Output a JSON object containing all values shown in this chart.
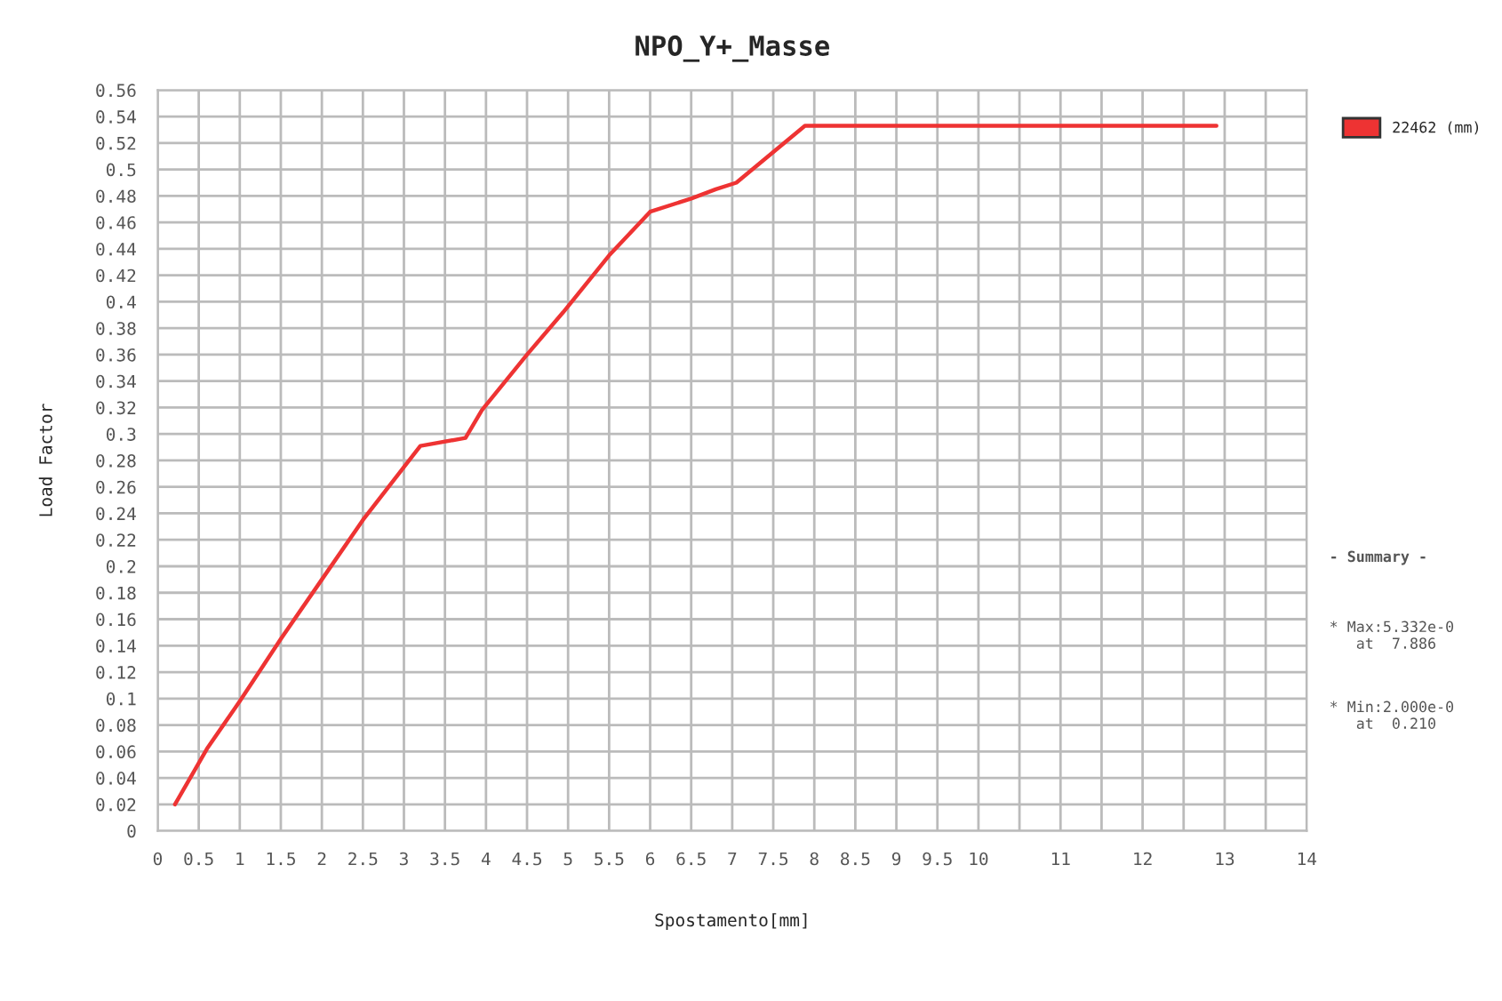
{
  "chart_data": {
    "type": "line",
    "title": "NPO_Y+_Masse",
    "xlabel": "Spostamento[mm]",
    "ylabel": "Load Factor",
    "x": [
      0.21,
      0.6,
      1.0,
      1.5,
      2.0,
      2.5,
      3.2,
      3.75,
      3.95,
      4.5,
      4.94,
      5.5,
      6.0,
      6.5,
      6.8,
      7.05,
      7.886,
      12.9
    ],
    "series": [
      {
        "name": "22462 (mm)",
        "color": "#ee3333",
        "values": [
          0.02,
          0.062,
          0.098,
          0.145,
          0.19,
          0.235,
          0.291,
          0.297,
          0.318,
          0.36,
          0.392,
          0.435,
          0.468,
          0.478,
          0.485,
          0.49,
          0.533,
          0.533
        ]
      }
    ],
    "xlim": [
      0,
      14
    ],
    "ylim": [
      0,
      0.56
    ],
    "xticks": [
      0,
      0.5,
      1,
      1.5,
      2,
      2.5,
      3,
      3.5,
      4,
      4.5,
      5,
      5.5,
      6,
      6.5,
      7,
      7.5,
      8,
      8.5,
      9,
      9.5,
      10,
      {
        "value": 10.5,
        "label": null
      },
      11,
      {
        "value": 11.5,
        "label": null
      },
      12,
      {
        "value": 12.5,
        "label": null
      },
      13,
      {
        "value": 13.5,
        "label": null
      },
      14
    ],
    "yticks": [
      0,
      0.02,
      0.04,
      0.06,
      0.08,
      0.1,
      0.12,
      0.14,
      0.16,
      0.18,
      0.2,
      0.22,
      0.24,
      0.26,
      0.28,
      0.3,
      0.32,
      0.34,
      0.36,
      0.38,
      0.4,
      0.42,
      0.44,
      0.46,
      0.48,
      0.5,
      0.52,
      0.54,
      0.56
    ],
    "grid": true,
    "legend": "top right",
    "annotations": [
      "- Summary -",
      "* Max:5.332e-0\n   at  7.886",
      "* Min:2.000e-0\n   at  0.210"
    ]
  }
}
